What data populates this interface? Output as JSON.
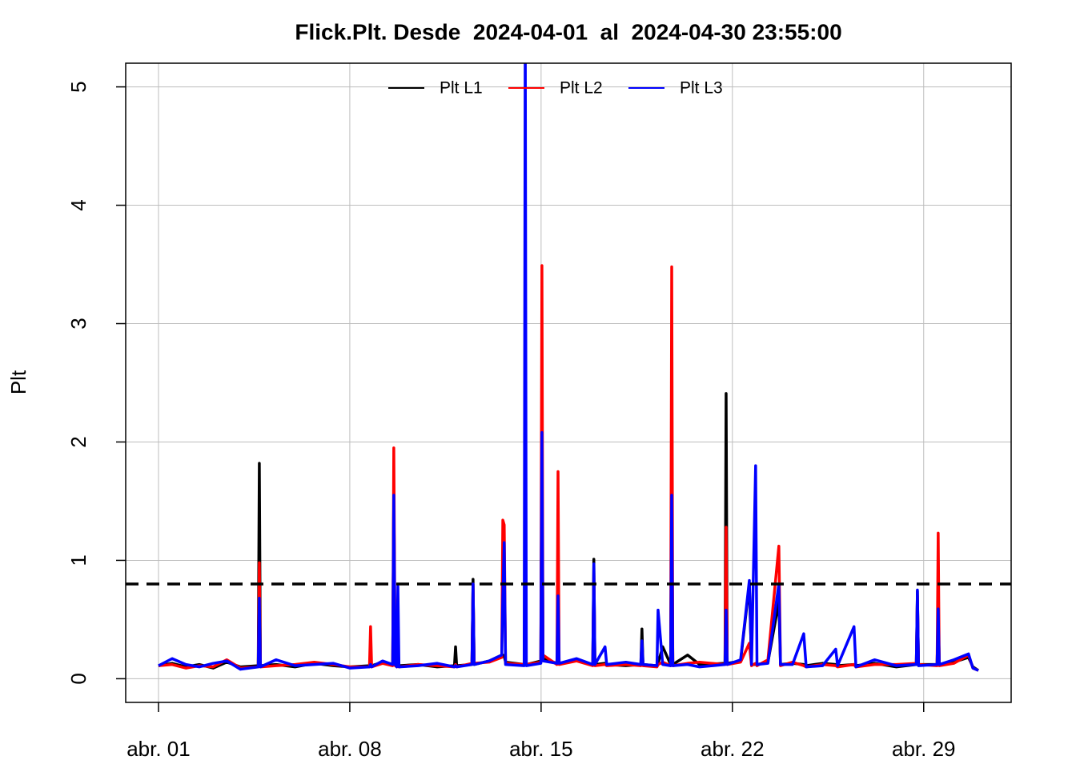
{
  "chart_data": {
    "type": "line",
    "title": "Flick.Plt. Desde  2024-04-01  al  2024-04-30 23:55:00",
    "y_label": "Plt",
    "xlim": [
      -0.2,
      32.2
    ],
    "xticks": [
      {
        "value": 1,
        "label": "abr. 01"
      },
      {
        "value": 8,
        "label": "abr. 08"
      },
      {
        "value": 15,
        "label": "abr. 15"
      },
      {
        "value": 22,
        "label": "abr. 22"
      },
      {
        "value": 29,
        "label": "abr. 29"
      }
    ],
    "ylim": [
      -0.2,
      5.2
    ],
    "yticks": [
      0,
      1,
      2,
      3,
      4,
      5
    ],
    "grid": true,
    "legend_position": "top",
    "hline": {
      "value": 0.8,
      "color": "#000000"
    },
    "x": [
      1.0,
      1.5,
      2.0,
      2.5,
      3.0,
      3.5,
      4.0,
      4.65,
      4.69,
      4.73,
      5.3,
      6.0,
      6.7,
      7.4,
      8.0,
      8.72,
      8.76,
      8.8,
      9.2,
      9.57,
      9.61,
      9.66,
      9.72,
      9.76,
      9.8,
      10.5,
      11.2,
      11.83,
      11.87,
      11.91,
      12.47,
      12.51,
      12.55,
      13.1,
      13.56,
      13.6,
      13.65,
      13.7,
      14.38,
      14.42,
      14.46,
      14.99,
      15.03,
      15.07,
      15.58,
      15.62,
      15.66,
      16.3,
      16.89,
      16.93,
      16.97,
      17.34,
      17.4,
      18.1,
      18.65,
      18.69,
      18.73,
      19.24,
      19.28,
      19.45,
      19.74,
      19.78,
      19.82,
      20.36,
      20.8,
      21.73,
      21.77,
      21.81,
      22.3,
      22.62,
      22.7,
      22.85,
      22.9,
      23.3,
      23.7,
      23.76,
      24.2,
      24.61,
      24.7,
      25.3,
      25.78,
      25.85,
      26.45,
      26.52,
      27.2,
      28.0,
      28.73,
      28.77,
      28.81,
      29.49,
      29.53,
      29.57,
      30.1,
      30.64,
      30.8,
      31.0
    ],
    "series": [
      {
        "name": "Plt L1",
        "color": "#000000",
        "values": [
          0.11,
          0.13,
          0.1,
          0.12,
          0.09,
          0.14,
          0.1,
          0.11,
          1.82,
          0.11,
          0.12,
          0.1,
          0.13,
          0.11,
          0.1,
          0.11,
          0.12,
          0.11,
          0.14,
          0.12,
          1.55,
          0.12,
          0.11,
          0.12,
          0.11,
          0.12,
          0.1,
          0.11,
          0.27,
          0.11,
          0.12,
          0.84,
          0.12,
          0.15,
          0.2,
          0.2,
          0.19,
          0.14,
          0.12,
          0.13,
          0.12,
          0.15,
          2.08,
          0.17,
          0.13,
          0.14,
          0.13,
          0.16,
          0.12,
          1.01,
          0.12,
          0.13,
          0.12,
          0.11,
          0.12,
          0.42,
          0.12,
          0.11,
          0.13,
          0.27,
          0.12,
          1.55,
          0.12,
          0.2,
          0.12,
          0.13,
          2.41,
          0.13,
          0.15,
          0.8,
          0.12,
          0.12,
          0.12,
          0.14,
          0.65,
          0.12,
          0.13,
          0.12,
          0.11,
          0.13,
          0.12,
          0.11,
          0.12,
          0.11,
          0.13,
          0.1,
          0.12,
          0.74,
          0.12,
          0.12,
          0.6,
          0.12,
          0.14,
          0.18,
          0.1,
          0.07
        ]
      },
      {
        "name": "Plt L2",
        "color": "#ff0000",
        "values": [
          0.11,
          0.12,
          0.09,
          0.11,
          0.1,
          0.16,
          0.09,
          0.1,
          0.98,
          0.1,
          0.11,
          0.12,
          0.14,
          0.12,
          0.1,
          0.1,
          0.44,
          0.1,
          0.13,
          0.11,
          1.95,
          0.11,
          0.1,
          0.12,
          0.1,
          0.12,
          0.11,
          0.1,
          0.12,
          0.1,
          0.13,
          0.8,
          0.13,
          0.14,
          0.18,
          1.34,
          1.3,
          0.13,
          0.12,
          0.14,
          0.12,
          0.14,
          3.49,
          0.2,
          0.12,
          1.75,
          0.12,
          0.15,
          0.11,
          0.9,
          0.11,
          0.12,
          0.11,
          0.12,
          0.11,
          0.3,
          0.11,
          0.1,
          0.12,
          0.14,
          0.11,
          3.48,
          0.11,
          0.13,
          0.14,
          0.12,
          1.28,
          0.12,
          0.14,
          0.3,
          0.11,
          0.13,
          0.11,
          0.16,
          1.12,
          0.11,
          0.14,
          0.11,
          0.1,
          0.12,
          0.11,
          0.1,
          0.12,
          0.1,
          0.12,
          0.12,
          0.13,
          0.7,
          0.12,
          0.11,
          1.23,
          0.11,
          0.13,
          0.2,
          0.09,
          0.07
        ]
      },
      {
        "name": "Plt L3",
        "color": "#0000ff",
        "values": [
          0.11,
          0.17,
          0.12,
          0.1,
          0.13,
          0.15,
          0.08,
          0.1,
          0.68,
          0.1,
          0.16,
          0.11,
          0.12,
          0.13,
          0.09,
          0.1,
          0.12,
          0.1,
          0.15,
          0.12,
          1.55,
          0.12,
          0.1,
          0.78,
          0.1,
          0.11,
          0.13,
          0.1,
          0.11,
          0.1,
          0.12,
          0.8,
          0.12,
          0.15,
          0.2,
          0.7,
          1.15,
          0.12,
          0.11,
          5.6,
          0.11,
          0.13,
          2.08,
          0.15,
          0.13,
          0.7,
          0.13,
          0.17,
          0.12,
          0.97,
          0.12,
          0.27,
          0.12,
          0.14,
          0.12,
          0.32,
          0.12,
          0.11,
          0.58,
          0.12,
          0.11,
          1.55,
          0.11,
          0.12,
          0.1,
          0.12,
          0.58,
          0.12,
          0.16,
          0.83,
          0.12,
          1.8,
          0.12,
          0.13,
          0.8,
          0.12,
          0.12,
          0.38,
          0.1,
          0.11,
          0.25,
          0.11,
          0.44,
          0.1,
          0.16,
          0.11,
          0.12,
          0.75,
          0.11,
          0.12,
          0.59,
          0.12,
          0.16,
          0.21,
          0.09,
          0.07
        ]
      }
    ]
  }
}
